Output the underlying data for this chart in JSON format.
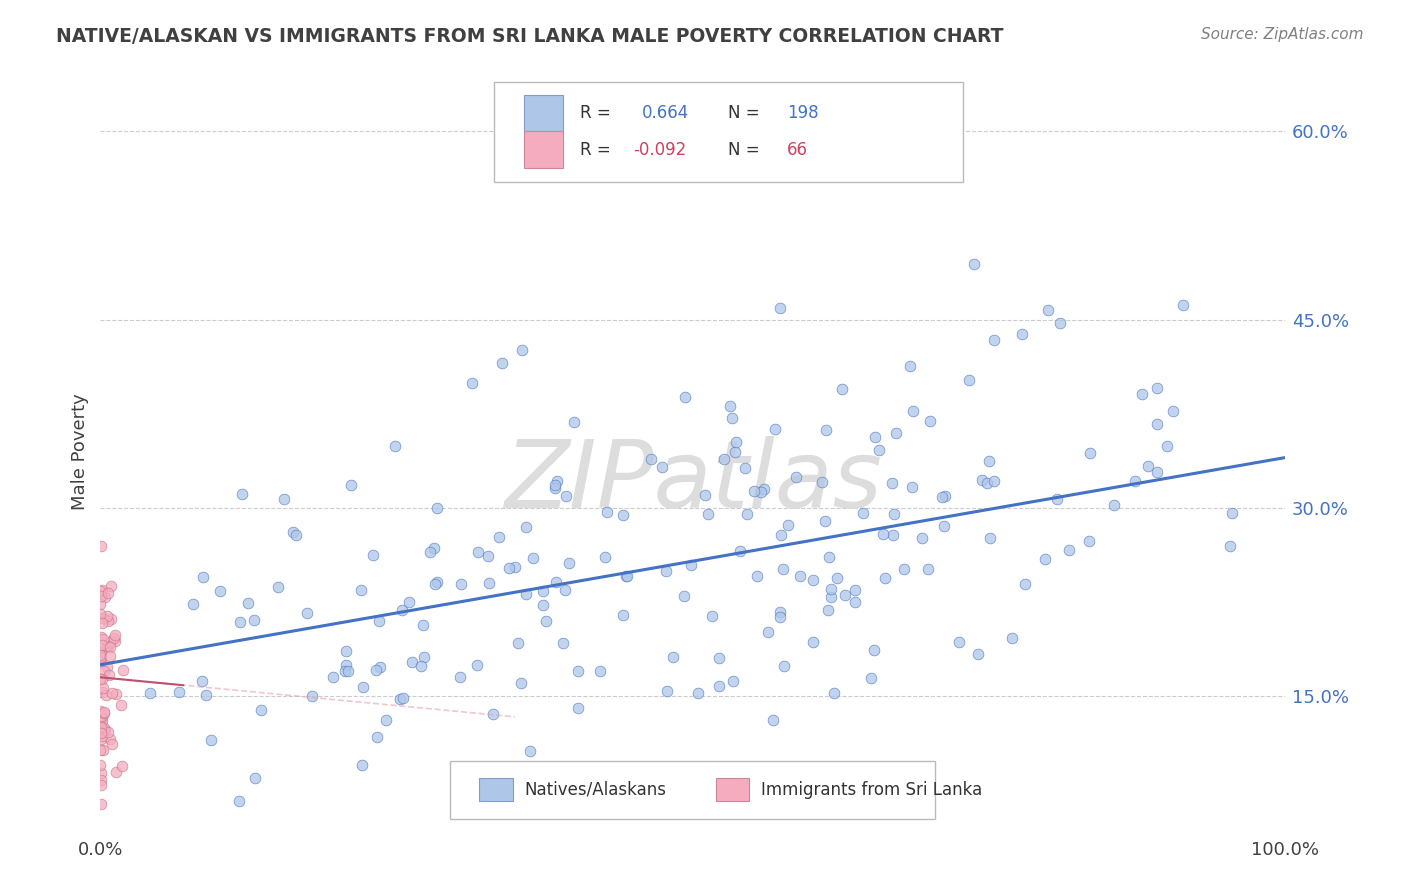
{
  "title": "NATIVE/ALASKAN VS IMMIGRANTS FROM SRI LANKA MALE POVERTY CORRELATION CHART",
  "source": "Source: ZipAtlas.com",
  "ylabel": "Male Poverty",
  "xlim": [
    0.0,
    1.0
  ],
  "ylim": [
    0.04,
    0.65
  ],
  "yticks": [
    0.15,
    0.3,
    0.45,
    0.6
  ],
  "ytick_labels": [
    "15.0%",
    "30.0%",
    "45.0%",
    "60.0%"
  ],
  "xticks": [
    0.0,
    1.0
  ],
  "xtick_labels": [
    "0.0%",
    "100.0%"
  ],
  "legend1_R": "0.664",
  "legend1_N": "198",
  "legend2_R": "-0.092",
  "legend2_N": "66",
  "blue_color": "#AEC6E8",
  "pink_color": "#F4ACBE",
  "blue_line_color": "#4472C4",
  "pink_line_color": "#E8A0B0",
  "watermark": "ZIPatlas",
  "background_color": "#FFFFFF",
  "grid_color": "#CCCCCC",
  "title_color": "#404040",
  "source_color": "#808080",
  "seed": 42,
  "n_blue": 198,
  "n_pink": 66,
  "blue_slope": 0.165,
  "blue_intercept": 0.175,
  "pink_slope": -0.09,
  "pink_intercept": 0.165
}
